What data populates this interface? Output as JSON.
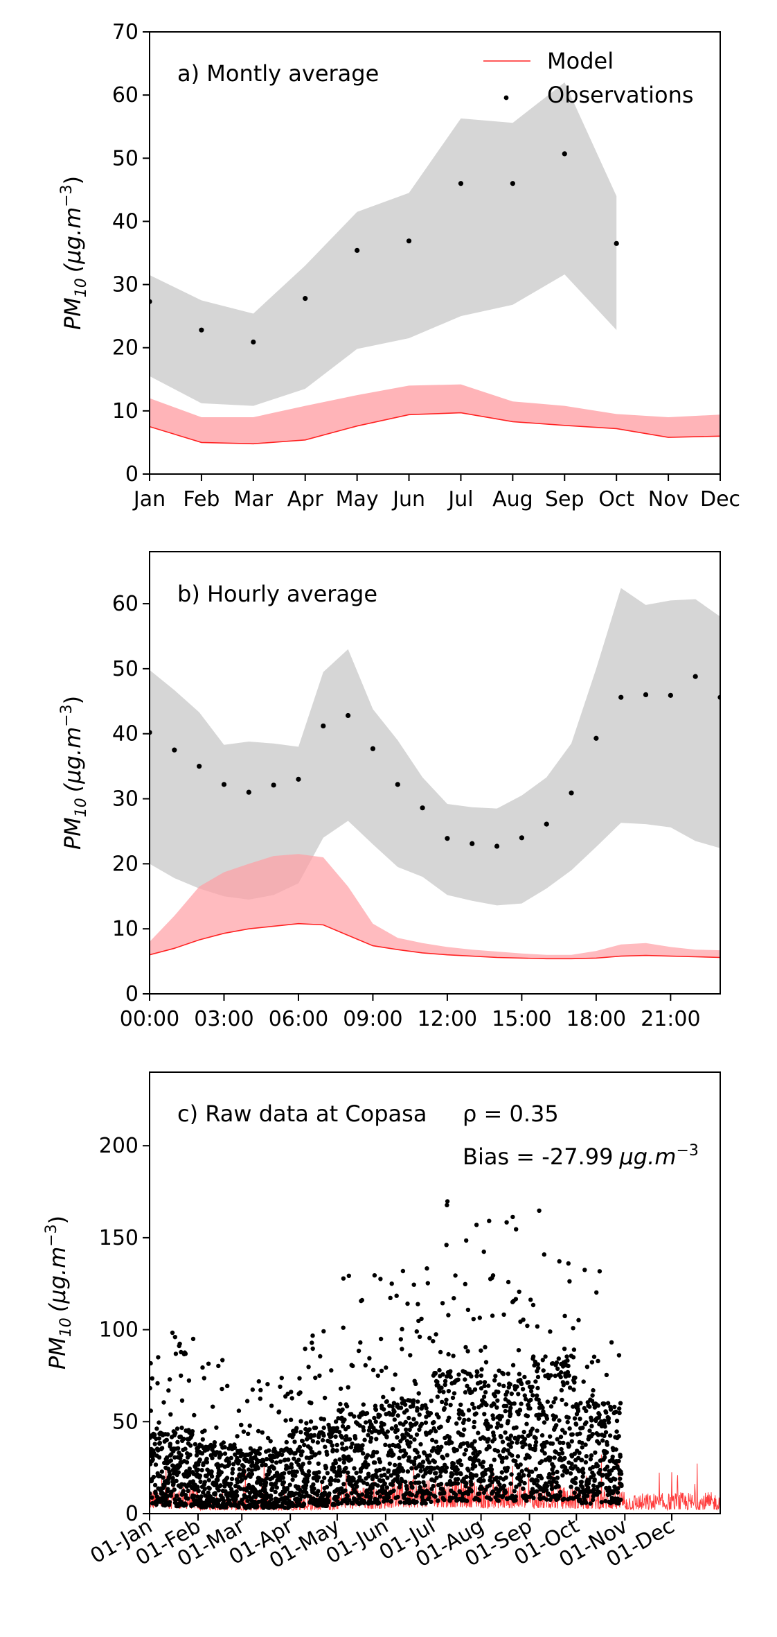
{
  "chart_data": [
    {
      "type": "line",
      "panel_label": "a) Montly average",
      "ylabel_main": "PM",
      "ylabel_sub": "10",
      "ylabel_unit": "(μg.m",
      "ylabel_exp": "−3",
      "ylabel_close": ")",
      "x": [
        "Jan",
        "Feb",
        "Mar",
        "Apr",
        "May",
        "Jun",
        "Jul",
        "Aug",
        "Sep",
        "Oct",
        "Nov",
        "Dec"
      ],
      "ylim": [
        0,
        70
      ],
      "yticks": [
        0,
        10,
        20,
        30,
        40,
        50,
        60,
        70
      ],
      "legend": {
        "placement": "top-right",
        "model": "Model",
        "observations": "Observations"
      },
      "model_line": [
        7.5,
        5.0,
        4.8,
        5.4,
        7.6,
        9.4,
        9.7,
        8.3,
        7.7,
        7.2,
        5.8,
        6.0
      ],
      "model_band_low": [
        7.5,
        5.0,
        4.8,
        5.4,
        7.6,
        9.4,
        9.7,
        8.3,
        7.7,
        7.2,
        5.8,
        6.0
      ],
      "model_band_high": [
        12.0,
        9.0,
        9.0,
        10.8,
        12.5,
        14.0,
        14.2,
        11.5,
        10.8,
        9.5,
        9.0,
        9.4
      ],
      "obs": [
        27.3,
        22.8,
        20.9,
        27.8,
        35.4,
        36.9,
        46.0,
        46.0,
        50.7,
        36.5
      ],
      "obs_band_low": [
        15.5,
        11.2,
        10.8,
        13.5,
        19.8,
        21.5,
        25.0,
        26.8,
        31.6,
        22.8
      ],
      "obs_band_high": [
        31.5,
        27.5,
        25.4,
        33.0,
        41.5,
        44.5,
        56.3,
        55.6,
        62.0,
        44.0
      ],
      "colors": {
        "model": "#ff2222",
        "model_band": "#ffb0b4",
        "obs_band": "#d6d6d6",
        "obs": "#000000"
      }
    },
    {
      "type": "line",
      "panel_label": "b) Hourly average",
      "ylabel_main": "PM",
      "ylabel_sub": "10",
      "ylabel_unit": "(μg.m",
      "ylabel_exp": "−3",
      "ylabel_close": ")",
      "x": [
        0,
        1,
        2,
        3,
        4,
        5,
        6,
        7,
        8,
        9,
        10,
        11,
        12,
        13,
        14,
        15,
        16,
        17,
        18,
        19,
        20,
        21,
        22,
        23
      ],
      "xticks": [
        0,
        3,
        6,
        9,
        12,
        15,
        18,
        21
      ],
      "xticklabels": [
        "00:00",
        "03:00",
        "06:00",
        "09:00",
        "12:00",
        "15:00",
        "18:00",
        "21:00"
      ],
      "ylim": [
        0,
        68
      ],
      "yticks": [
        0,
        10,
        20,
        30,
        40,
        50,
        60
      ],
      "model_line": [
        6.0,
        7.0,
        8.3,
        9.3,
        10.0,
        10.4,
        10.8,
        10.6,
        9.0,
        7.4,
        6.8,
        6.3,
        6.0,
        5.8,
        5.6,
        5.5,
        5.4,
        5.4,
        5.5,
        5.8,
        5.9,
        5.8,
        5.7,
        5.6
      ],
      "model_band_low": [
        6.0,
        7.0,
        8.3,
        9.3,
        10.0,
        10.4,
        10.8,
        10.6,
        9.0,
        7.4,
        6.8,
        6.3,
        6.0,
        5.8,
        5.6,
        5.5,
        5.4,
        5.4,
        5.5,
        5.8,
        5.9,
        5.8,
        5.7,
        5.6
      ],
      "model_band_high": [
        8.0,
        12.0,
        16.5,
        18.7,
        20.0,
        21.2,
        21.5,
        21.0,
        16.5,
        10.8,
        8.6,
        7.8,
        7.2,
        6.8,
        6.5,
        6.2,
        6.0,
        6.0,
        6.6,
        7.6,
        7.8,
        7.2,
        6.8,
        6.7
      ],
      "obs": [
        40.2,
        37.5,
        35.0,
        32.2,
        31.0,
        32.1,
        33.0,
        41.2,
        42.8,
        37.7,
        32.2,
        28.6,
        23.9,
        23.1,
        22.7,
        24.0,
        26.1,
        30.9,
        39.3,
        45.6,
        46.0,
        45.9,
        48.8,
        45.6
      ],
      "obs_band_low": [
        20.0,
        17.8,
        16.2,
        15.0,
        14.5,
        15.2,
        17.0,
        24.0,
        26.6,
        23.0,
        19.5,
        18.0,
        15.2,
        14.3,
        13.6,
        13.9,
        16.2,
        19.0,
        22.6,
        26.3,
        26.1,
        25.6,
        23.5,
        22.4
      ],
      "obs_band_high": [
        49.8,
        46.7,
        43.3,
        38.3,
        38.8,
        38.5,
        38.0,
        49.5,
        53.0,
        43.8,
        39.0,
        33.3,
        29.2,
        28.7,
        28.5,
        30.5,
        33.3,
        38.5,
        50.0,
        62.4,
        59.8,
        60.5,
        60.7,
        58.0
      ],
      "colors": {
        "model": "#ff2222",
        "model_band": "#ff9ea4",
        "obs_band": "#d6d6d6",
        "obs": "#000000"
      }
    },
    {
      "type": "scatter",
      "panel_label": "c) Raw data at Copasa",
      "rho_text": "ρ = 0.35",
      "bias_prefix": "Bias = -27.99",
      "bias_unit": "μg.m",
      "bias_exp": "−3",
      "ylabel_main": "PM",
      "ylabel_sub": "10",
      "ylabel_unit": "(μg.m",
      "ylabel_exp": "−3",
      "ylabel_close": ")",
      "xlim": [
        0,
        365
      ],
      "ylim": [
        0,
        240
      ],
      "yticks": [
        0,
        50,
        100,
        150,
        200
      ],
      "xticks": [
        0,
        31,
        59,
        90,
        120,
        151,
        181,
        212,
        243,
        273,
        304,
        334
      ],
      "xticklabels": [
        "01-Jan",
        "01-Feb",
        "01-Mar",
        "01-Apr",
        "01-May",
        "01-Jun",
        "01-Jul",
        "01-Aug",
        "01-Sep",
        "01-Oct",
        "01-Nov",
        "01-Dec"
      ],
      "obs_end_day": 302,
      "obs_monthly_mean": [
        27.3,
        22.8,
        20.9,
        27.8,
        35.4,
        36.9,
        46.0,
        46.0,
        50.7,
        36.5
      ],
      "model_monthly_mean": [
        7.5,
        5.0,
        4.8,
        5.4,
        7.6,
        9.4,
        9.7,
        8.3,
        7.7,
        7.2,
        5.8,
        6.0
      ],
      "colors": {
        "model": "#ff1a1a",
        "obs": "#000000"
      }
    }
  ]
}
